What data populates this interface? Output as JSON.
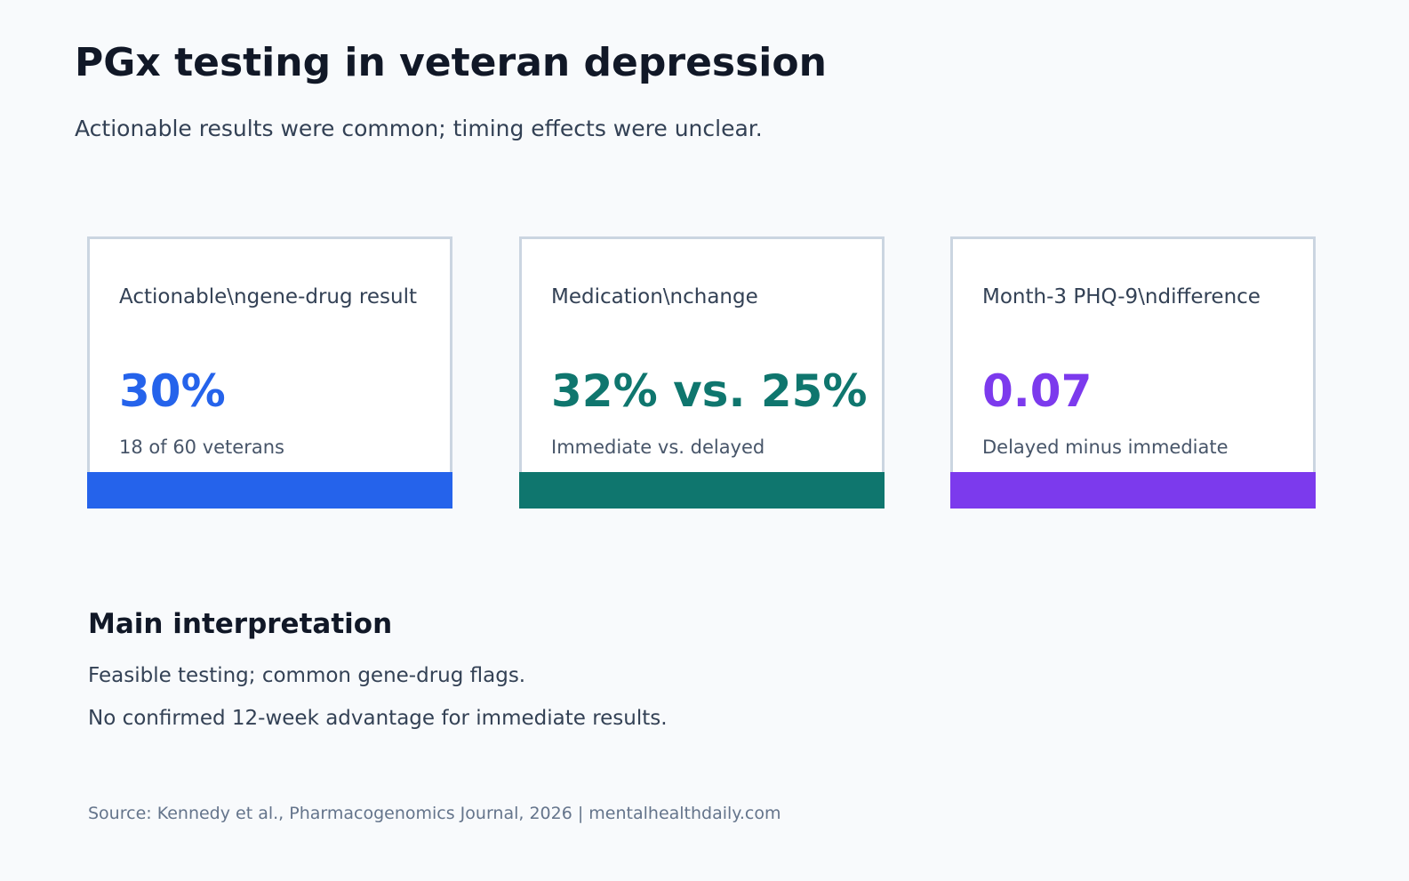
{
  "header": {
    "title": "PGx testing in veteran depression",
    "subtitle": "Actionable results were common; timing effects were unclear."
  },
  "cards": [
    {
      "label": "Actionable\\ngene-drug result",
      "value": "30%",
      "note": "18 of 60 veterans",
      "color": "#2563eb"
    },
    {
      "label": "Medication\\nchange",
      "value": "32% vs. 25%",
      "note": "Immediate vs. delayed",
      "color": "#0f766e"
    },
    {
      "label": "Month-3 PHQ-9\\ndifference",
      "value": "0.07",
      "note": "Delayed minus immediate",
      "color": "#7c3aed"
    }
  ],
  "interpretation": {
    "heading": "Main interpretation",
    "lines": [
      "Feasible testing; common gene-drug flags.",
      "No confirmed 12-week advantage for immediate results."
    ]
  },
  "footer": {
    "source": "Source: Kennedy et al., Pharmacogenomics Journal, 2026 | mentalhealthdaily.com"
  }
}
